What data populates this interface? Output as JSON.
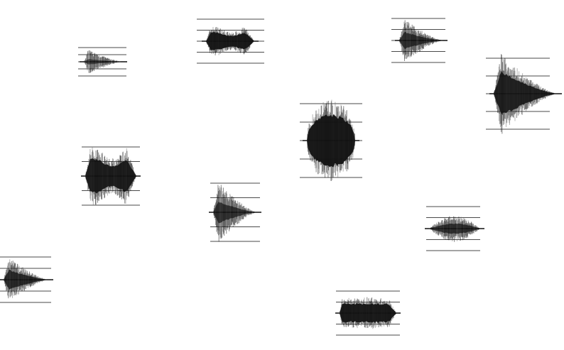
{
  "colors": {
    "background": "#ffffff",
    "cluster_outline": "#d42020",
    "waveform": "#111111",
    "waveform_light": "#6a6a6a",
    "staff_line": "#4a4a4a"
  },
  "clusters": [
    {
      "id": "left",
      "waveforms": [
        {
          "id": "w1",
          "shape": "dense-burst",
          "staff_lines": 5
        },
        {
          "id": "w2",
          "shape": "faint-attack-decay",
          "staff_lines": 5
        },
        {
          "id": "w3",
          "shape": "dense-burst",
          "staff_lines": 5
        },
        {
          "id": "w4",
          "shape": "attack-decay",
          "staff_lines": 5
        }
      ]
    },
    {
      "id": "right",
      "waveforms": [
        {
          "id": "w5",
          "shape": "attack-decay",
          "staff_lines": 5
        },
        {
          "id": "w6",
          "shape": "dense-ellipse",
          "staff_lines": 5
        },
        {
          "id": "w7",
          "shape": "dense-attack-decay",
          "staff_lines": 5
        },
        {
          "id": "w8",
          "shape": "small-spindle",
          "staff_lines": 5
        }
      ]
    },
    {
      "id": "bottom",
      "waveforms": [
        {
          "id": "w9",
          "shape": "attack-decay",
          "staff_lines": 5
        },
        {
          "id": "w10",
          "shape": "dense-block",
          "staff_lines": 5
        }
      ]
    }
  ]
}
